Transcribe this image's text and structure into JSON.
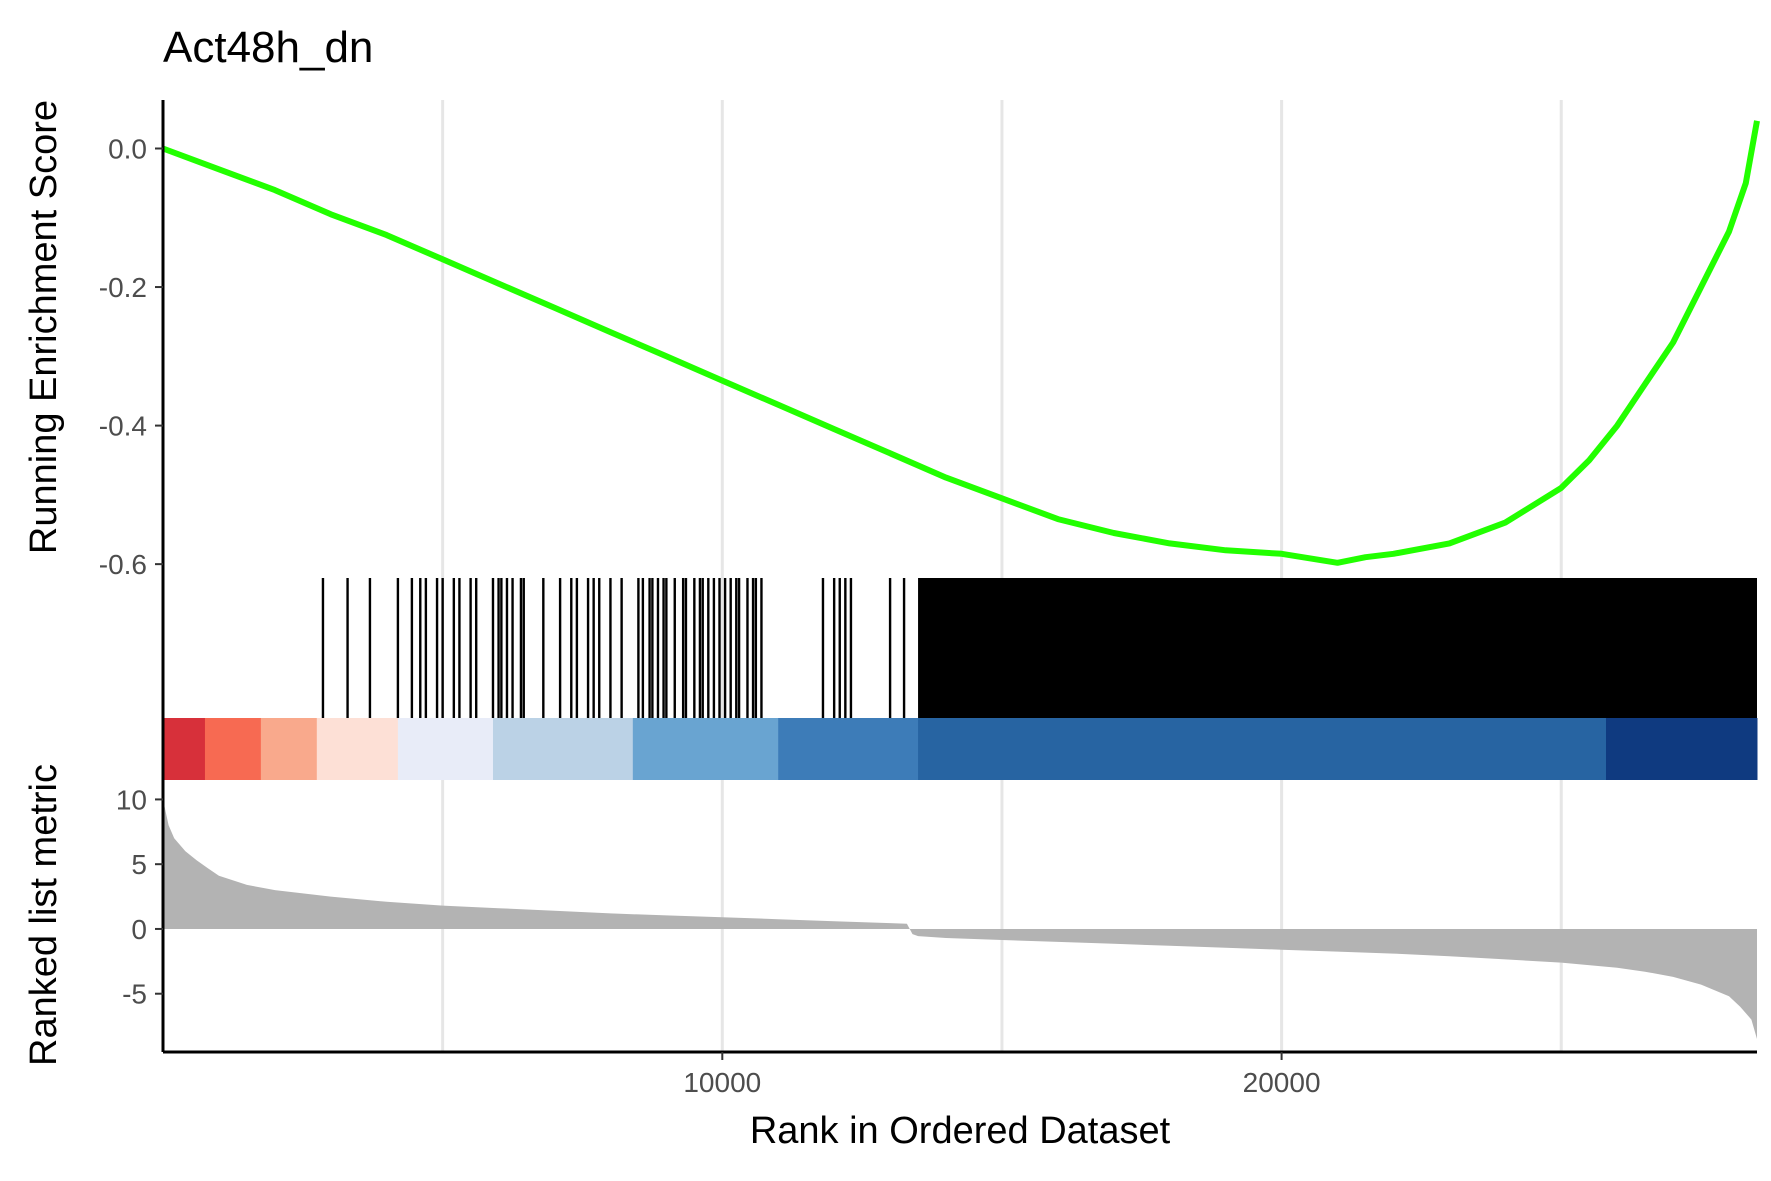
{
  "chart_data": {
    "type": "line",
    "title": "Act48h_dn",
    "xlabel": "Rank in Ordered Dataset",
    "x_ticks": [
      10000,
      20000
    ],
    "x_tick_labels": [
      "10000",
      "20000"
    ],
    "xlim": [
      0,
      28500
    ],
    "grid": "vertical major + minor",
    "top_panel": {
      "ylabel": "Running Enrichment Score",
      "ylim": [
        -0.62,
        0.07
      ],
      "y_ticks": [
        0.0,
        -0.2,
        -0.4,
        -0.6
      ],
      "y_tick_labels": [
        "0.0",
        "-0.2",
        "-0.4",
        "-0.6"
      ],
      "line_color": "#22ff00",
      "running_es": {
        "x": [
          0,
          1000,
          2000,
          3000,
          4000,
          5000,
          6000,
          7000,
          8000,
          9000,
          10000,
          11000,
          12000,
          13000,
          14000,
          15000,
          16000,
          17000,
          18000,
          19000,
          20000,
          21000,
          21500,
          22000,
          23000,
          24000,
          25000,
          25500,
          26000,
          26500,
          27000,
          27500,
          28000,
          28300,
          28500
        ],
        "y": [
          0.0,
          -0.03,
          -0.06,
          -0.095,
          -0.125,
          -0.16,
          -0.195,
          -0.23,
          -0.265,
          -0.3,
          -0.335,
          -0.37,
          -0.405,
          -0.44,
          -0.475,
          -0.505,
          -0.535,
          -0.555,
          -0.57,
          -0.58,
          -0.585,
          -0.598,
          -0.59,
          -0.585,
          -0.57,
          -0.54,
          -0.49,
          -0.45,
          -0.4,
          -0.34,
          -0.28,
          -0.2,
          -0.12,
          -0.05,
          0.04
        ]
      }
    },
    "hit_panel": {
      "hit_color": "#000000",
      "sparse_hits": [
        2860,
        3300,
        3700,
        4200,
        4450,
        4600,
        4700,
        4900,
        5000,
        5200,
        5300,
        5500,
        5600,
        5900,
        6000,
        6050,
        6150,
        6250,
        6400,
        6450,
        6800,
        7100,
        7300,
        7400,
        7600,
        7700,
        7800,
        8000,
        8200,
        8500,
        8580,
        8700,
        8750,
        8850,
        8950,
        9000,
        9150,
        9300,
        9350,
        9500,
        9600,
        9650,
        9750,
        9850,
        9950,
        10050,
        10150,
        10250,
        10300,
        10450,
        10550,
        10600,
        10700,
        11800,
        12000,
        12100,
        12200,
        12300,
        13000,
        13250
      ],
      "dense_range": [
        13500,
        28500
      ]
    },
    "color_bar": {
      "segments": [
        {
          "x0": 0,
          "x1": 750,
          "color": "#d7303a"
        },
        {
          "x0": 750,
          "x1": 1750,
          "color": "#f76a52"
        },
        {
          "x0": 1750,
          "x1": 2750,
          "color": "#f9a98c"
        },
        {
          "x0": 2750,
          "x1": 4200,
          "color": "#fde0d6"
        },
        {
          "x0": 4200,
          "x1": 5900,
          "color": "#e8ecf8"
        },
        {
          "x0": 5900,
          "x1": 8400,
          "color": "#bbd2e6"
        },
        {
          "x0": 8400,
          "x1": 11000,
          "color": "#69a4d1"
        },
        {
          "x0": 11000,
          "x1": 13500,
          "color": "#3d7cb8"
        },
        {
          "x0": 13500,
          "x1": 25800,
          "color": "#2764a2"
        },
        {
          "x0": 25800,
          "x1": 28500,
          "color": "#0f3a80"
        }
      ]
    },
    "bottom_panel": {
      "ylabel": "Ranked list metric",
      "ylim": [
        -9.5,
        11.5
      ],
      "y_ticks": [
        10,
        5,
        0,
        -5
      ],
      "y_tick_labels": [
        "10",
        "5",
        "0",
        "-5"
      ],
      "fill_color": "#b3b3b3",
      "metric": {
        "x": [
          0,
          50,
          100,
          200,
          400,
          600,
          800,
          1000,
          1500,
          2000,
          3000,
          4000,
          5000,
          6000,
          7000,
          8000,
          9000,
          10000,
          11000,
          12000,
          13000,
          13300,
          13400,
          13500,
          14000,
          15000,
          16000,
          17000,
          18000,
          19000,
          20000,
          21000,
          22000,
          23000,
          24000,
          25000,
          26000,
          26500,
          27000,
          27500,
          28000,
          28200,
          28400,
          28500
        ],
        "y": [
          10,
          9,
          8,
          7,
          6,
          5.3,
          4.7,
          4.1,
          3.4,
          3.0,
          2.5,
          2.1,
          1.8,
          1.6,
          1.4,
          1.2,
          1.05,
          0.9,
          0.75,
          0.6,
          0.45,
          0.4,
          -0.4,
          -0.55,
          -0.7,
          -0.85,
          -1.0,
          -1.15,
          -1.3,
          -1.45,
          -1.6,
          -1.75,
          -1.9,
          -2.1,
          -2.35,
          -2.6,
          -3.0,
          -3.3,
          -3.7,
          -4.3,
          -5.2,
          -6.0,
          -7.0,
          -8.5
        ]
      }
    }
  }
}
